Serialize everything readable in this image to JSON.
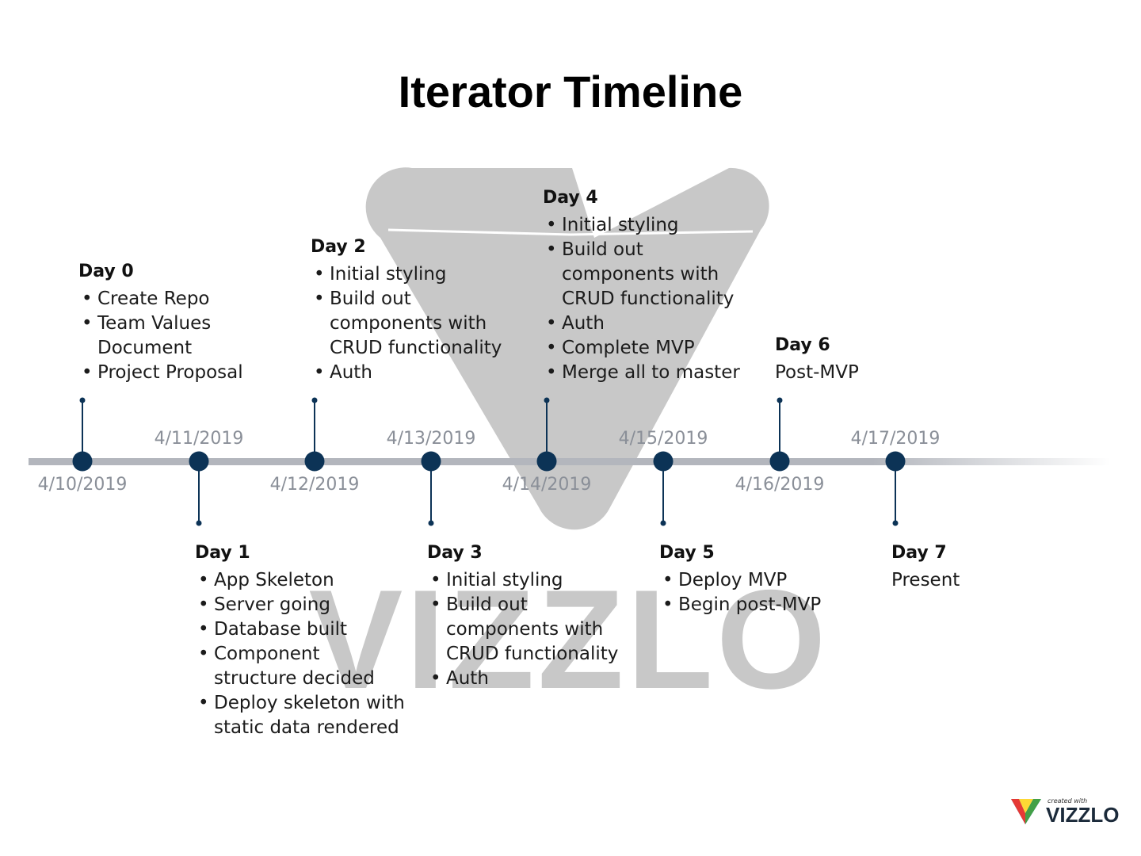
{
  "title": "Iterator Timeline",
  "watermark": {
    "text": "VIZZLO"
  },
  "logo": {
    "small_text": "created with",
    "brand": "VIZZLO"
  },
  "colors": {
    "node": "#0c3356",
    "axis": "#b3b6bd",
    "date_text": "#8a8f98",
    "watermark": "#c8c8c8"
  },
  "dates": [
    {
      "label": "4/10/2019",
      "position": "below"
    },
    {
      "label": "4/11/2019",
      "position": "above"
    },
    {
      "label": "4/12/2019",
      "position": "below"
    },
    {
      "label": "4/13/2019",
      "position": "above"
    },
    {
      "label": "4/14/2019",
      "position": "below"
    },
    {
      "label": "4/15/2019",
      "position": "above"
    },
    {
      "label": "4/16/2019",
      "position": "below"
    },
    {
      "label": "4/17/2019",
      "position": "above"
    }
  ],
  "milestones": [
    {
      "day": "Day 0",
      "side": "above",
      "items": [
        "Create Repo",
        "Team Values\nDocument",
        "Project Proposal"
      ]
    },
    {
      "day": "Day 1",
      "side": "below",
      "items": [
        "App Skeleton",
        "Server going",
        "Database built",
        "Component\nstructure decided",
        "Deploy skeleton with\nstatic data rendered"
      ]
    },
    {
      "day": "Day 2",
      "side": "above",
      "items": [
        "Initial styling",
        "Build out\ncomponents with\nCRUD functionality",
        "Auth"
      ]
    },
    {
      "day": "Day 3",
      "side": "below",
      "items": [
        "Initial styling",
        "Build out\ncomponents with\nCRUD functionality",
        "Auth"
      ]
    },
    {
      "day": "Day 4",
      "side": "above",
      "items": [
        "Initial styling",
        "Build out\ncomponents with\nCRUD functionality",
        "Auth",
        "Complete MVP",
        "Merge all to master"
      ]
    },
    {
      "day": "Day 5",
      "side": "below",
      "items": [
        "Deploy MVP",
        "Begin post-MVP"
      ]
    },
    {
      "day": "Day 6",
      "side": "above",
      "text": "Post-MVP"
    },
    {
      "day": "Day 7",
      "side": "below",
      "text": "Present"
    }
  ]
}
